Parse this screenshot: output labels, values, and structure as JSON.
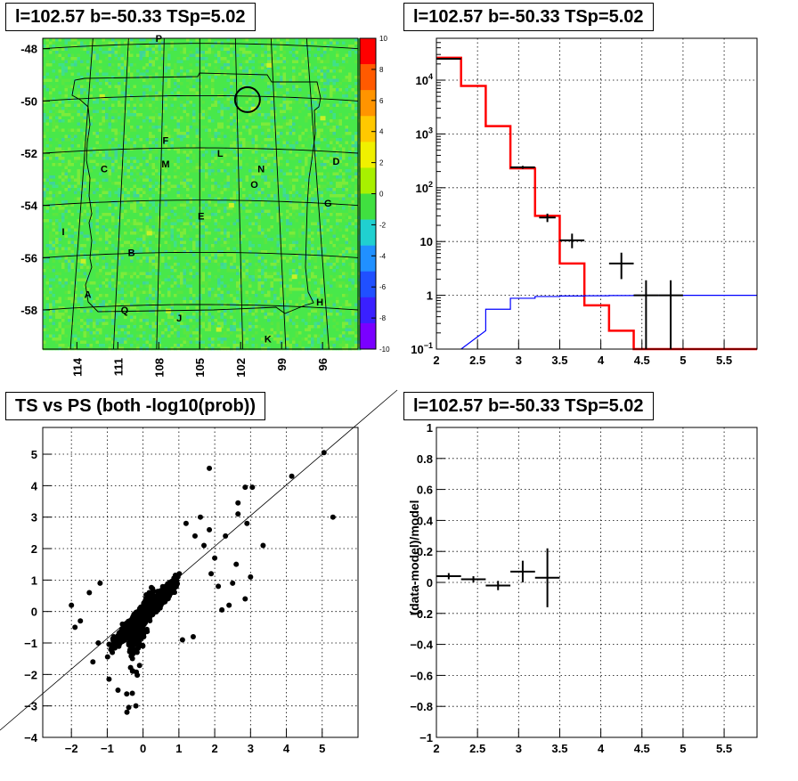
{
  "titles": {
    "skymap": "l=102.57 b=-50.33 TSp=5.02",
    "spectrum": "l=102.57 b=-50.33 TSp=5.02",
    "scatter": "TS vs PS (both -log10(prob))",
    "residual": "l=102.57 b=-50.33 TSp=5.02"
  },
  "chart_data": [
    {
      "panel": "skymap",
      "type": "heatmap",
      "title": "l=102.57 b=-50.33 TSp=5.02",
      "xlim": [
        116.5,
        93.4
      ],
      "ylim": [
        -59.5,
        -47.6
      ],
      "x_tick_labels": [
        "114",
        "111",
        "108",
        "105",
        "102",
        "99",
        "96"
      ],
      "x_ticks": [
        114,
        111,
        108,
        105,
        102,
        99,
        96
      ],
      "y_tick_labels": [
        "-48",
        "-50",
        "-52",
        "-54",
        "-56",
        "-58"
      ],
      "y_ticks": [
        -48,
        -50,
        -52,
        -54,
        -56,
        -58
      ],
      "colorbar": {
        "range": [
          -10,
          10
        ],
        "tick_labels": [
          "10",
          "8",
          "6",
          "4",
          "2",
          "0",
          "-2",
          "-4",
          "-6",
          "-8",
          "-10"
        ],
        "tick_values": [
          10,
          8,
          6,
          4,
          2,
          0,
          -2,
          -4,
          -6,
          -8,
          -10
        ]
      },
      "field_value_typical": 0.5,
      "circle": {
        "l": 101.5,
        "b": -49.95
      },
      "source_labels": [
        {
          "text": "P",
          "l": 108.0,
          "b": -47.6
        },
        {
          "text": "F",
          "l": 107.5,
          "b": -51.5
        },
        {
          "text": "C",
          "l": 112.0,
          "b": -52.6
        },
        {
          "text": "M",
          "l": 107.5,
          "b": -52.4
        },
        {
          "text": "L",
          "l": 103.5,
          "b": -52.0
        },
        {
          "text": "N",
          "l": 100.5,
          "b": -52.6
        },
        {
          "text": "D",
          "l": 95.0,
          "b": -52.3
        },
        {
          "text": "O",
          "l": 101.0,
          "b": -53.2
        },
        {
          "text": "G",
          "l": 95.6,
          "b": -53.9
        },
        {
          "text": "E",
          "l": 104.9,
          "b": -54.4
        },
        {
          "text": "I",
          "l": 115.0,
          "b": -55.0
        },
        {
          "text": "B",
          "l": 110.0,
          "b": -55.8
        },
        {
          "text": "A",
          "l": 113.2,
          "b": -57.4
        },
        {
          "text": "Q",
          "l": 110.5,
          "b": -58.0
        },
        {
          "text": "J",
          "l": 106.5,
          "b": -58.3
        },
        {
          "text": "H",
          "l": 96.2,
          "b": -57.7
        },
        {
          "text": "K",
          "l": 100.0,
          "b": -59.1
        }
      ]
    },
    {
      "panel": "spectrum",
      "type": "line",
      "title": "l=102.57 b=-50.33 TSp=5.02",
      "xlim": [
        2,
        5.9
      ],
      "ylim": [
        0.1,
        60000
      ],
      "log_y": true,
      "grid": true,
      "x_tick_labels": [
        "2",
        "2.5",
        "3",
        "3.5",
        "4",
        "4.5",
        "5",
        "5.5"
      ],
      "x_ticks": [
        2,
        2.5,
        3,
        3.5,
        4,
        4.5,
        5,
        5.5
      ],
      "y_tick_labels": [
        "10^-1",
        "1",
        "10",
        "10^2",
        "10^3",
        "10^4"
      ],
      "y_ticks": [
        0.1,
        1,
        10,
        100,
        1000,
        10000
      ],
      "series": [
        {
          "color": "#ff0000",
          "bin_edges": [
            2.0,
            2.3,
            2.6,
            2.9,
            3.2,
            3.5,
            3.8,
            4.1,
            4.4,
            5.9
          ],
          "values": [
            26000,
            7800,
            1400,
            230,
            30,
            3.9,
            0.65,
            0.22,
            0.1
          ]
        },
        {
          "color": "#0000ff",
          "bin_edges": [
            2.3,
            2.6,
            2.9,
            3.2,
            3.5,
            3.8,
            4.1,
            4.4,
            5.9
          ],
          "values": [
            0.22,
            0.55,
            0.88,
            0.95,
            0.97,
            0.98,
            0.99,
            1.0
          ]
        }
      ],
      "data_points": [
        {
          "x": 2.15,
          "y": 25000,
          "xerr": 0.15,
          "ylo": 24700,
          "yhi": 25300
        },
        {
          "x": 3.05,
          "y": 240,
          "xerr": 0.15,
          "ylo": 225,
          "yhi": 255
        },
        {
          "x": 3.35,
          "y": 28,
          "xerr": 0.1,
          "ylo": 23,
          "yhi": 33
        },
        {
          "x": 3.65,
          "y": 10.5,
          "xerr": 0.15,
          "ylo": 7.5,
          "yhi": 14
        },
        {
          "x": 4.25,
          "y": 3.9,
          "xerr": 0.15,
          "ylo": 2.0,
          "yhi": 6.2
        },
        {
          "x": 4.55,
          "y": 1.0,
          "xerr": 0.15,
          "ylo": 0.1,
          "yhi": 1.9
        },
        {
          "x": 4.85,
          "y": 1.0,
          "xerr": 0.15,
          "ylo": 0.1,
          "yhi": 1.9
        }
      ]
    },
    {
      "panel": "scatter",
      "type": "scatter",
      "title": "TS vs PS (both -log10(prob))",
      "xlim": [
        -2.8,
        6
      ],
      "ylim": [
        -4,
        5.85
      ],
      "grid": true,
      "x_tick_labels": [
        "−2",
        "−1",
        "0",
        "1",
        "2",
        "3",
        "4",
        "5"
      ],
      "x_ticks": [
        -2,
        -1,
        0,
        1,
        2,
        3,
        4,
        5
      ],
      "y_tick_labels": [
        "−4",
        "−3",
        "−2",
        "−1",
        "0",
        "1",
        "2",
        "3",
        "4",
        "5"
      ],
      "y_ticks": [
        -4,
        -3,
        -2,
        -1,
        0,
        1,
        2,
        3,
        4,
        5
      ],
      "diagonal": {
        "from": [
          -3.8,
          -3.8
        ],
        "to": [
          7.0,
          7.0
        ]
      },
      "outliers": [
        [
          5.05,
          5.05
        ],
        [
          5.3,
          3.0
        ],
        [
          4.15,
          4.3
        ],
        [
          3.05,
          3.95
        ],
        [
          2.85,
          3.95
        ],
        [
          1.85,
          4.55
        ],
        [
          2.65,
          3.45
        ],
        [
          3.35,
          2.1
        ],
        [
          2.9,
          2.8
        ],
        [
          2.65,
          3.1
        ],
        [
          3.0,
          1.1
        ],
        [
          2.6,
          1.5
        ],
        [
          2.85,
          0.4
        ],
        [
          2.4,
          0.2
        ],
        [
          2.2,
          0.05
        ],
        [
          -2.0,
          0.2
        ],
        [
          -1.75,
          -0.3
        ],
        [
          -1.9,
          -0.5
        ],
        [
          -1.25,
          -1.0
        ],
        [
          -0.95,
          -2.15
        ],
        [
          -0.4,
          -3.05
        ],
        [
          -0.45,
          -3.2
        ],
        [
          -0.2,
          -3.0
        ],
        [
          -0.3,
          -2.6
        ],
        [
          1.4,
          -0.8
        ],
        [
          1.1,
          -0.9
        ],
        [
          1.85,
          2.6
        ],
        [
          1.9,
          1.2
        ],
        [
          2.1,
          0.8
        ],
        [
          2.3,
          2.4
        ],
        [
          1.6,
          3.0
        ],
        [
          1.7,
          2.1
        ],
        [
          2.0,
          1.7
        ],
        [
          2.5,
          0.9
        ],
        [
          -1.5,
          0.6
        ],
        [
          -1.2,
          0.9
        ],
        [
          -1.4,
          -1.6
        ],
        [
          1.2,
          2.8
        ],
        [
          1.45,
          2.4
        ],
        [
          -0.7,
          -2.5
        ]
      ]
    },
    {
      "panel": "residual",
      "type": "scatter",
      "title": "l=102.57 b=-50.33 TSp=5.02",
      "ylabel": "(data-model)/model",
      "xlim": [
        2,
        5.9
      ],
      "ylim": [
        -1,
        1
      ],
      "grid": true,
      "x_tick_labels": [
        "2",
        "2.5",
        "3",
        "3.5",
        "4",
        "4.5",
        "5",
        "5.5"
      ],
      "x_ticks": [
        2,
        2.5,
        3,
        3.5,
        4,
        4.5,
        5,
        5.5
      ],
      "y_tick_labels": [
        "−1",
        "−0.8",
        "−0.6",
        "−0.4",
        "−0.2",
        "0",
        "0.2",
        "0.4",
        "0.6",
        "0.8",
        "1"
      ],
      "y_ticks": [
        -1,
        -0.8,
        -0.6,
        -0.4,
        -0.2,
        0,
        0.2,
        0.4,
        0.6,
        0.8,
        1
      ],
      "points": [
        {
          "x": 2.15,
          "y": 0.04,
          "xerr": 0.15,
          "yerr": 0.02
        },
        {
          "x": 2.45,
          "y": 0.02,
          "xerr": 0.15,
          "yerr": 0.02
        },
        {
          "x": 2.75,
          "y": -0.02,
          "xerr": 0.15,
          "yerr": 0.03
        },
        {
          "x": 3.05,
          "y": 0.07,
          "xerr": 0.15,
          "yerr": 0.07
        },
        {
          "x": 3.35,
          "y": 0.03,
          "xerr": 0.15,
          "yerr": 0.19
        }
      ]
    }
  ]
}
